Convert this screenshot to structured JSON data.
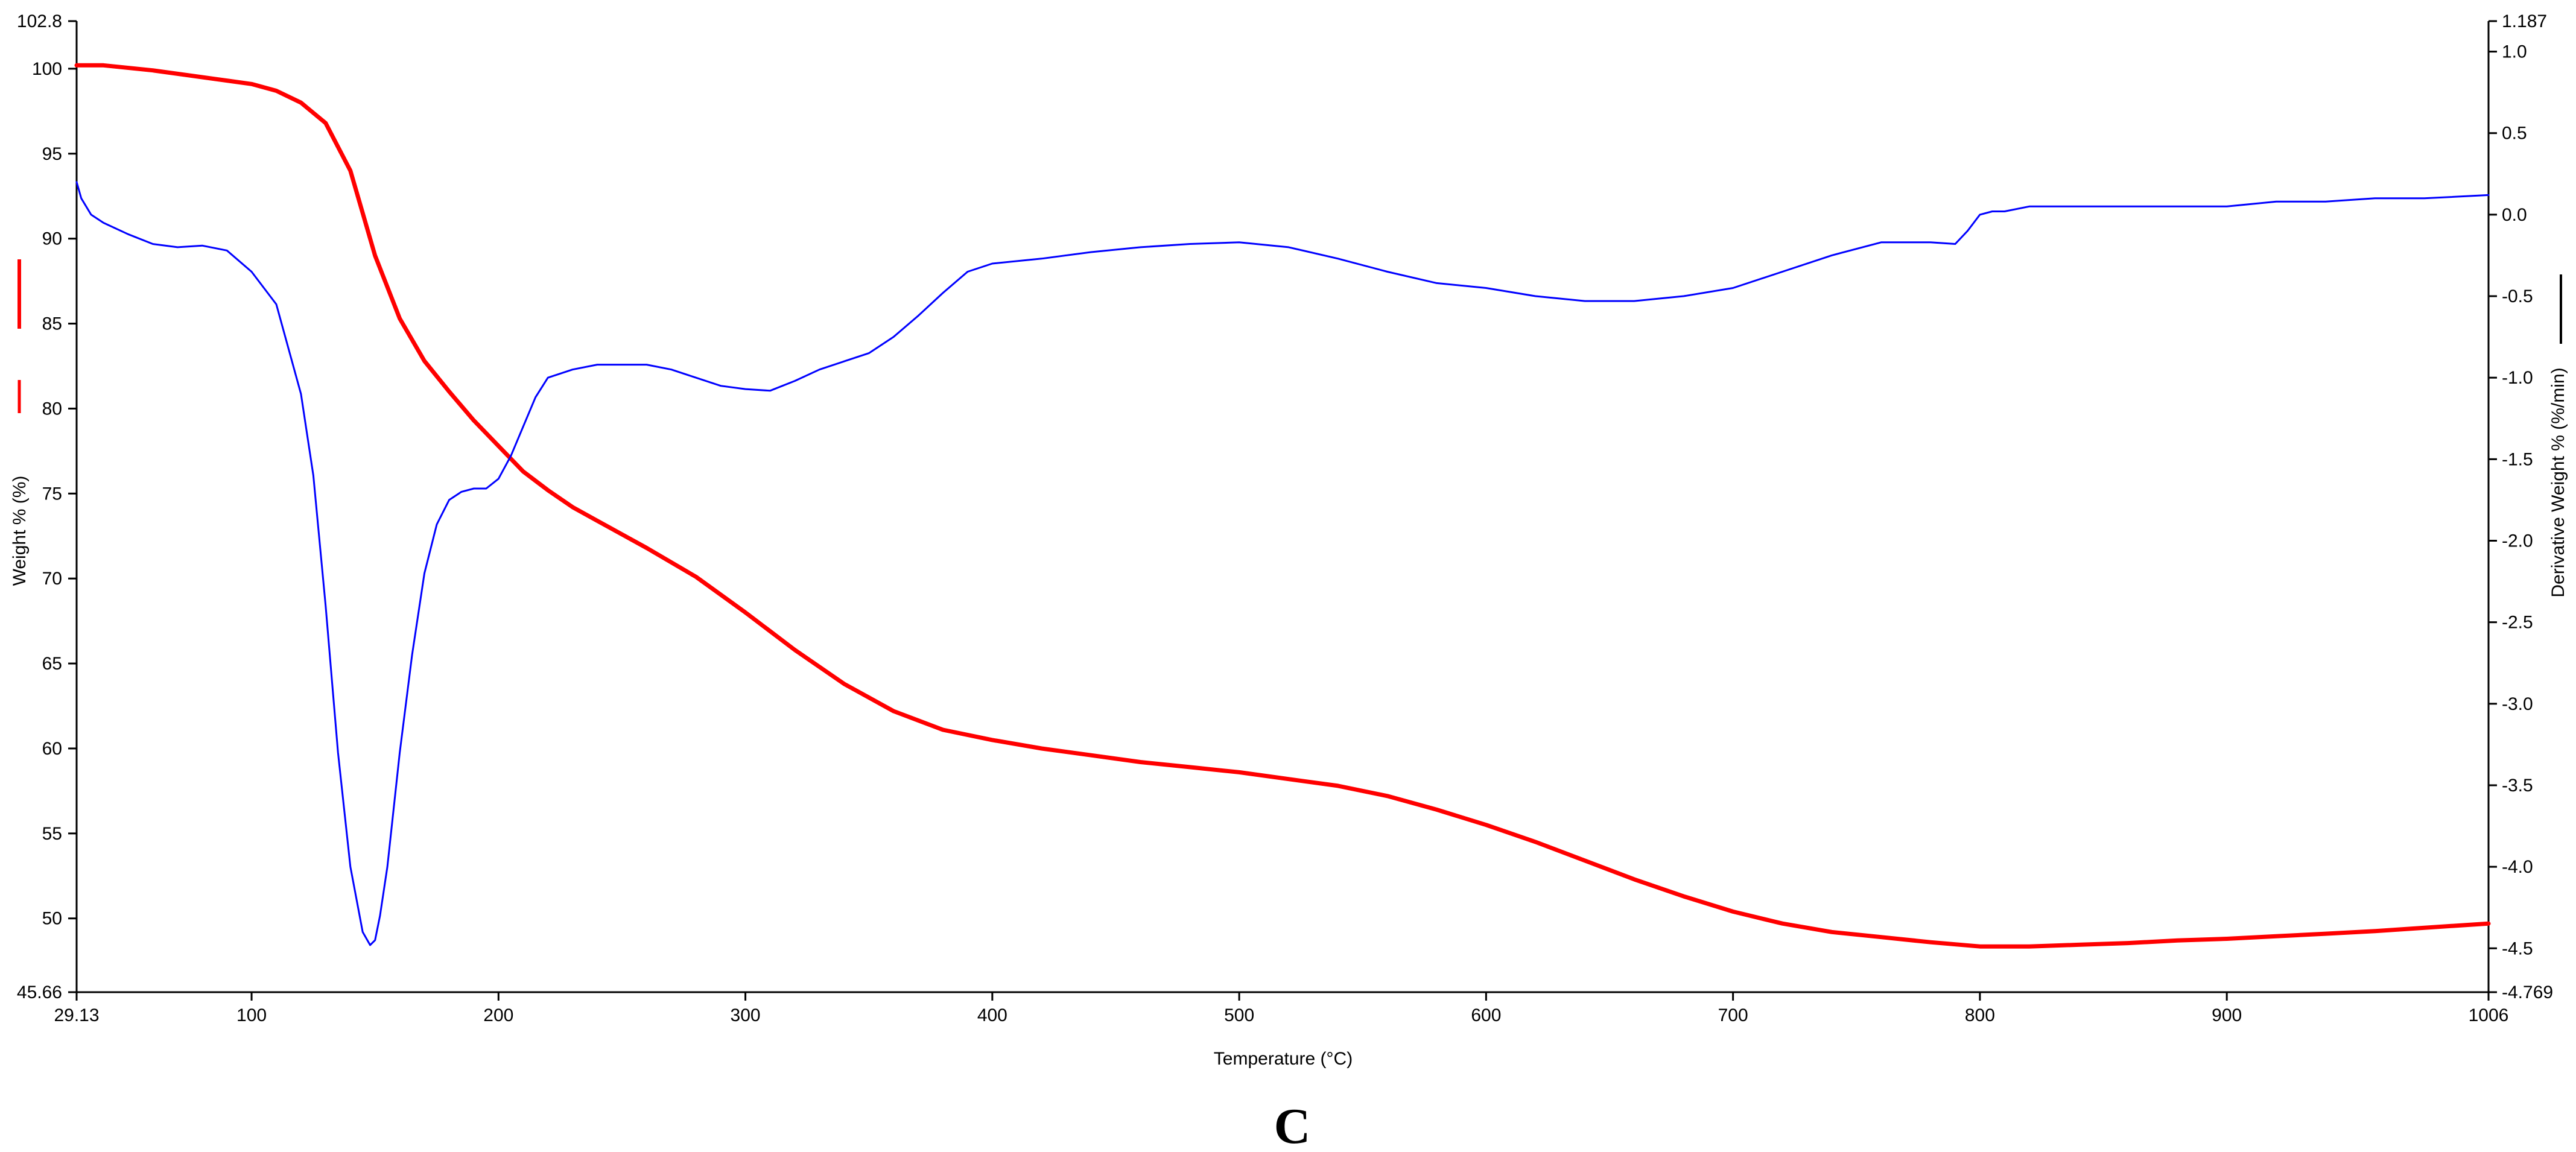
{
  "panel_label": "C",
  "chart_data": {
    "type": "line",
    "xlabel": "Temperature (°C)",
    "ylabel_left": "Weight % (%)",
    "ylabel_right": "Derivative Weight % (%/min)",
    "xlim": [
      29.13,
      1006
    ],
    "ylim_left": [
      45.66,
      102.8
    ],
    "ylim_right": [
      -4.769,
      1.187
    ],
    "x_tick_labels": [
      "29.13",
      "100",
      "200",
      "300",
      "400",
      "500",
      "600",
      "700",
      "800",
      "900",
      "1006"
    ],
    "x_tick_values": [
      29.13,
      100,
      200,
      300,
      400,
      500,
      600,
      700,
      800,
      900,
      1006
    ],
    "y_left_tick_labels": [
      "45.66",
      "50",
      "55",
      "60",
      "65",
      "70",
      "75",
      "80",
      "85",
      "90",
      "95",
      "100",
      "102.8"
    ],
    "y_left_tick_values": [
      45.66,
      50,
      55,
      60,
      65,
      70,
      75,
      80,
      85,
      90,
      95,
      100,
      102.8
    ],
    "y_right_tick_labels": [
      "-4.769",
      "-4.5",
      "-4.0",
      "-3.5",
      "-3.0",
      "-2.5",
      "-2.0",
      "-1.5",
      "-1.0",
      "-0.5",
      "0.0",
      "0.5",
      "1.0",
      "1.187"
    ],
    "y_right_tick_values": [
      -4.769,
      -4.5,
      -4.0,
      -3.5,
      -3.0,
      -2.5,
      -2.0,
      -1.5,
      -1.0,
      -0.5,
      0.0,
      0.5,
      1.0,
      1.187
    ],
    "grid": false,
    "series": [
      {
        "axis": "left",
        "color": "#ff0000",
        "x": [
          29.13,
          40,
          60,
          80,
          100,
          110,
          120,
          130,
          140,
          150,
          160,
          170,
          180,
          190,
          200,
          210,
          220,
          230,
          240,
          260,
          280,
          300,
          320,
          340,
          360,
          380,
          400,
          420,
          440,
          460,
          480,
          500,
          520,
          540,
          560,
          580,
          600,
          620,
          640,
          660,
          680,
          700,
          720,
          740,
          760,
          780,
          800,
          820,
          840,
          860,
          880,
          900,
          920,
          940,
          960,
          980,
          1006
        ],
        "values": [
          100.2,
          100.2,
          99.9,
          99.5,
          99.1,
          98.7,
          98.0,
          96.8,
          94.0,
          89.0,
          85.3,
          82.8,
          81.0,
          79.3,
          77.8,
          76.3,
          75.2,
          74.2,
          73.4,
          71.8,
          70.1,
          68.0,
          65.8,
          63.8,
          62.2,
          61.1,
          60.5,
          60.0,
          59.6,
          59.2,
          58.9,
          58.6,
          58.2,
          57.8,
          57.2,
          56.4,
          55.5,
          54.5,
          53.4,
          52.3,
          51.3,
          50.4,
          49.7,
          49.2,
          48.9,
          48.6,
          48.35,
          48.35,
          48.45,
          48.55,
          48.7,
          48.8,
          48.95,
          49.1,
          49.25,
          49.45,
          49.7
        ]
      },
      {
        "axis": "right",
        "color": "#0000ff",
        "x": [
          29.13,
          31,
          35,
          40,
          50,
          60,
          70,
          80,
          90,
          100,
          110,
          120,
          125,
          130,
          135,
          140,
          145,
          148,
          150,
          152,
          155,
          160,
          165,
          170,
          175,
          180,
          185,
          190,
          195,
          200,
          205,
          210,
          215,
          220,
          230,
          240,
          260,
          270,
          280,
          290,
          300,
          310,
          320,
          330,
          340,
          350,
          360,
          370,
          380,
          390,
          400,
          420,
          440,
          460,
          480,
          500,
          520,
          540,
          560,
          580,
          600,
          620,
          640,
          660,
          680,
          700,
          720,
          740,
          760,
          780,
          790,
          795,
          800,
          805,
          810,
          820,
          840,
          860,
          880,
          900,
          920,
          940,
          960,
          980,
          1006
        ],
        "values": [
          0.2,
          0.1,
          0.0,
          -0.05,
          -0.12,
          -0.18,
          -0.2,
          -0.19,
          -0.22,
          -0.35,
          -0.55,
          -1.1,
          -1.6,
          -2.4,
          -3.3,
          -4.0,
          -4.4,
          -4.48,
          -4.45,
          -4.3,
          -4.0,
          -3.3,
          -2.7,
          -2.2,
          -1.9,
          -1.75,
          -1.7,
          -1.68,
          -1.68,
          -1.62,
          -1.48,
          -1.3,
          -1.12,
          -1.0,
          -0.95,
          -0.92,
          -0.92,
          -0.95,
          -1.0,
          -1.05,
          -1.07,
          -1.08,
          -1.02,
          -0.95,
          -0.9,
          -0.85,
          -0.75,
          -0.62,
          -0.48,
          -0.35,
          -0.3,
          -0.27,
          -0.23,
          -0.2,
          -0.18,
          -0.17,
          -0.2,
          -0.27,
          -0.35,
          -0.42,
          -0.45,
          -0.5,
          -0.53,
          -0.53,
          -0.5,
          -0.45,
          -0.35,
          -0.25,
          -0.17,
          -0.17,
          -0.18,
          -0.1,
          0.0,
          0.02,
          0.02,
          0.05,
          0.05,
          0.05,
          0.05,
          0.05,
          0.08,
          0.08,
          0.1,
          0.1,
          0.12
        ]
      }
    ],
    "legend_markers_left": [
      "#ff0000",
      "#ff0000",
      "#ff0000"
    ],
    "legend_marker_right": "#000000"
  }
}
